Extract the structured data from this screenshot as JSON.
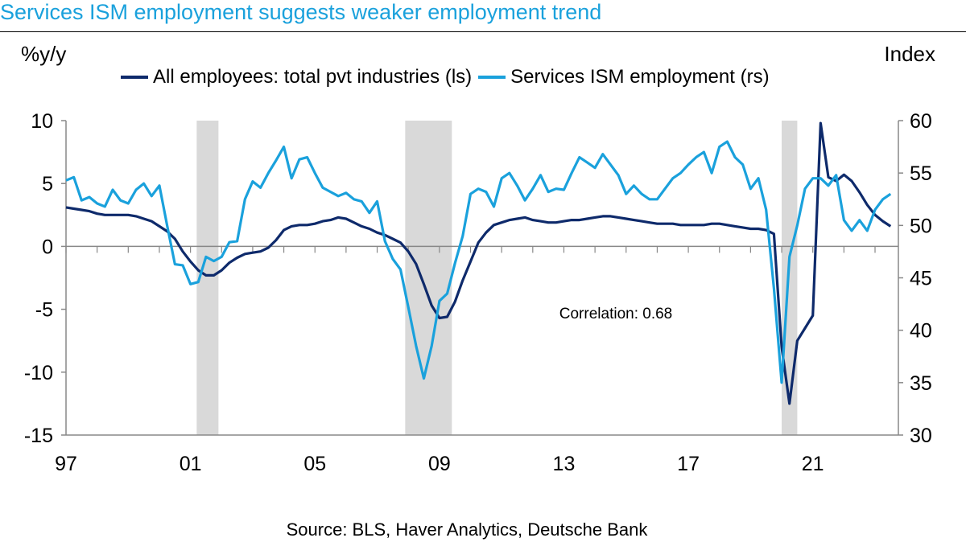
{
  "title": "Services ISM employment suggests weaker employment trend",
  "source": "Source: BLS, Haver Analytics, Deutsche Bank",
  "chart_data": {
    "type": "line",
    "title": "Services ISM employment suggests weaker employment trend",
    "ylabel_left": "%y/y",
    "ylabel_right": "Index",
    "xlabel": "",
    "xlim": [
      1997.0,
      2023.75
    ],
    "ylim_left": [
      -15,
      10
    ],
    "ylim_right": [
      30,
      60
    ],
    "yticks_left": [
      10,
      5,
      0,
      -5,
      -10,
      -15
    ],
    "yticks_right": [
      60,
      55,
      50,
      45,
      40,
      35,
      30
    ],
    "xticks": [
      {
        "label": "97",
        "x": 1997
      },
      {
        "label": "01",
        "x": 2001
      },
      {
        "label": "05",
        "x": 2005
      },
      {
        "label": "09",
        "x": 2009
      },
      {
        "label": "13",
        "x": 2013
      },
      {
        "label": "17",
        "x": 2017
      },
      {
        "label": "21",
        "x": 2021
      }
    ],
    "grid": false,
    "legend_position": "top",
    "recessions": [
      [
        2001.2,
        2001.9
      ],
      [
        2007.9,
        2009.4
      ],
      [
        2020.0,
        2020.5
      ]
    ],
    "annotation": "Correlation: 0.68",
    "colors": {
      "left_series": "#0e2a6b",
      "right_series": "#1aa1dc",
      "recession": "#d9d9d9"
    },
    "series": [
      {
        "name": "All employees: total pvt industries (ls)",
        "axis": "left",
        "x": [
          1997.0,
          1997.25,
          1997.5,
          1997.75,
          1998.0,
          1998.25,
          1998.5,
          1998.75,
          1999.0,
          1999.25,
          1999.5,
          1999.75,
          2000.0,
          2000.25,
          2000.5,
          2000.75,
          2001.0,
          2001.25,
          2001.5,
          2001.75,
          2002.0,
          2002.25,
          2002.5,
          2002.75,
          2003.0,
          2003.25,
          2003.5,
          2003.75,
          2004.0,
          2004.25,
          2004.5,
          2004.75,
          2005.0,
          2005.25,
          2005.5,
          2005.75,
          2006.0,
          2006.25,
          2006.5,
          2006.75,
          2007.0,
          2007.25,
          2007.5,
          2007.75,
          2008.0,
          2008.25,
          2008.5,
          2008.75,
          2009.0,
          2009.25,
          2009.5,
          2009.75,
          2010.0,
          2010.25,
          2010.5,
          2010.75,
          2011.0,
          2011.25,
          2011.5,
          2011.75,
          2012.0,
          2012.25,
          2012.5,
          2012.75,
          2013.0,
          2013.25,
          2013.5,
          2013.75,
          2014.0,
          2014.25,
          2014.5,
          2014.75,
          2015.0,
          2015.25,
          2015.5,
          2015.75,
          2016.0,
          2016.25,
          2016.5,
          2016.75,
          2017.0,
          2017.25,
          2017.5,
          2017.75,
          2018.0,
          2018.25,
          2018.5,
          2018.75,
          2019.0,
          2019.25,
          2019.5,
          2019.75,
          2020.0,
          2020.25,
          2020.5,
          2020.75,
          2021.0,
          2021.25,
          2021.5,
          2021.75,
          2022.0,
          2022.25,
          2022.5,
          2022.75,
          2023.0,
          2023.25,
          2023.5
        ],
        "y": [
          3.1,
          3.0,
          2.9,
          2.8,
          2.6,
          2.5,
          2.5,
          2.5,
          2.5,
          2.4,
          2.2,
          2.0,
          1.6,
          1.2,
          0.6,
          -0.4,
          -1.2,
          -1.9,
          -2.3,
          -2.3,
          -1.9,
          -1.3,
          -0.9,
          -0.6,
          -0.5,
          -0.4,
          -0.1,
          0.5,
          1.3,
          1.6,
          1.7,
          1.7,
          1.8,
          2.0,
          2.1,
          2.3,
          2.2,
          1.9,
          1.6,
          1.4,
          1.1,
          0.9,
          0.6,
          0.3,
          -0.4,
          -1.4,
          -3.0,
          -4.7,
          -5.7,
          -5.6,
          -4.4,
          -2.7,
          -1.2,
          0.3,
          1.1,
          1.7,
          1.9,
          2.1,
          2.2,
          2.3,
          2.1,
          2.0,
          1.9,
          1.9,
          2.0,
          2.1,
          2.1,
          2.2,
          2.3,
          2.4,
          2.4,
          2.3,
          2.2,
          2.1,
          2.0,
          1.9,
          1.8,
          1.8,
          1.8,
          1.7,
          1.7,
          1.7,
          1.7,
          1.8,
          1.8,
          1.7,
          1.6,
          1.5,
          1.4,
          1.4,
          1.3,
          1.0,
          -8.0,
          -12.5,
          -7.5,
          -6.5,
          -5.5,
          9.8,
          5.5,
          5.2,
          5.7,
          5.2,
          4.3,
          3.3,
          2.5,
          2.0,
          1.6
        ]
      },
      {
        "name": "Services ISM employment (rs)",
        "axis": "right",
        "x": [
          1997.0,
          1997.25,
          1997.5,
          1997.75,
          1998.0,
          1998.25,
          1998.5,
          1998.75,
          1999.0,
          1999.25,
          1999.5,
          1999.75,
          2000.0,
          2000.25,
          2000.5,
          2000.75,
          2001.0,
          2001.25,
          2001.5,
          2001.75,
          2002.0,
          2002.25,
          2002.5,
          2002.75,
          2003.0,
          2003.25,
          2003.5,
          2003.75,
          2004.0,
          2004.25,
          2004.5,
          2004.75,
          2005.0,
          2005.25,
          2005.5,
          2005.75,
          2006.0,
          2006.25,
          2006.5,
          2006.75,
          2007.0,
          2007.25,
          2007.5,
          2007.75,
          2008.0,
          2008.25,
          2008.5,
          2008.75,
          2009.0,
          2009.25,
          2009.5,
          2009.75,
          2010.0,
          2010.25,
          2010.5,
          2010.75,
          2011.0,
          2011.25,
          2011.5,
          2011.75,
          2012.0,
          2012.25,
          2012.5,
          2012.75,
          2013.0,
          2013.25,
          2013.5,
          2013.75,
          2014.0,
          2014.25,
          2014.5,
          2014.75,
          2015.0,
          2015.25,
          2015.5,
          2015.75,
          2016.0,
          2016.25,
          2016.5,
          2016.75,
          2017.0,
          2017.25,
          2017.5,
          2017.75,
          2018.0,
          2018.25,
          2018.5,
          2018.75,
          2019.0,
          2019.25,
          2019.5,
          2019.75,
          2020.0,
          2020.25,
          2020.5,
          2020.75,
          2021.0,
          2021.25,
          2021.5,
          2021.75,
          2022.0,
          2022.25,
          2022.5,
          2022.75,
          2023.0,
          2023.25,
          2023.5
        ],
        "y": [
          54.3,
          54.6,
          52.4,
          52.7,
          52.1,
          51.8,
          53.4,
          52.4,
          52.1,
          53.4,
          54.0,
          52.8,
          53.8,
          50.0,
          46.3,
          46.2,
          44.4,
          44.6,
          47.0,
          46.6,
          47.0,
          48.4,
          48.5,
          52.5,
          54.2,
          53.6,
          55.0,
          56.2,
          57.5,
          54.5,
          56.3,
          56.5,
          55.0,
          53.6,
          53.2,
          52.8,
          53.1,
          52.5,
          52.3,
          51.2,
          52.3,
          48.5,
          46.8,
          45.8,
          42.2,
          38.5,
          35.4,
          38.5,
          42.8,
          43.5,
          46.4,
          49.0,
          53.0,
          53.5,
          53.2,
          51.8,
          54.5,
          55.0,
          53.8,
          52.4,
          53.5,
          54.8,
          53.2,
          53.5,
          53.4,
          55.0,
          56.5,
          56.0,
          55.5,
          56.8,
          55.8,
          54.8,
          53.0,
          53.8,
          53.0,
          52.5,
          52.5,
          53.5,
          54.5,
          55.0,
          55.8,
          56.5,
          57.0,
          55.0,
          57.5,
          58.0,
          56.5,
          55.8,
          53.5,
          54.5,
          51.5,
          44.0,
          35.0,
          47.0,
          50.0,
          53.5,
          54.5,
          54.5,
          53.8,
          54.8,
          50.5,
          49.5,
          50.5,
          49.5,
          51.5,
          52.5,
          53.0
        ]
      }
    ]
  }
}
